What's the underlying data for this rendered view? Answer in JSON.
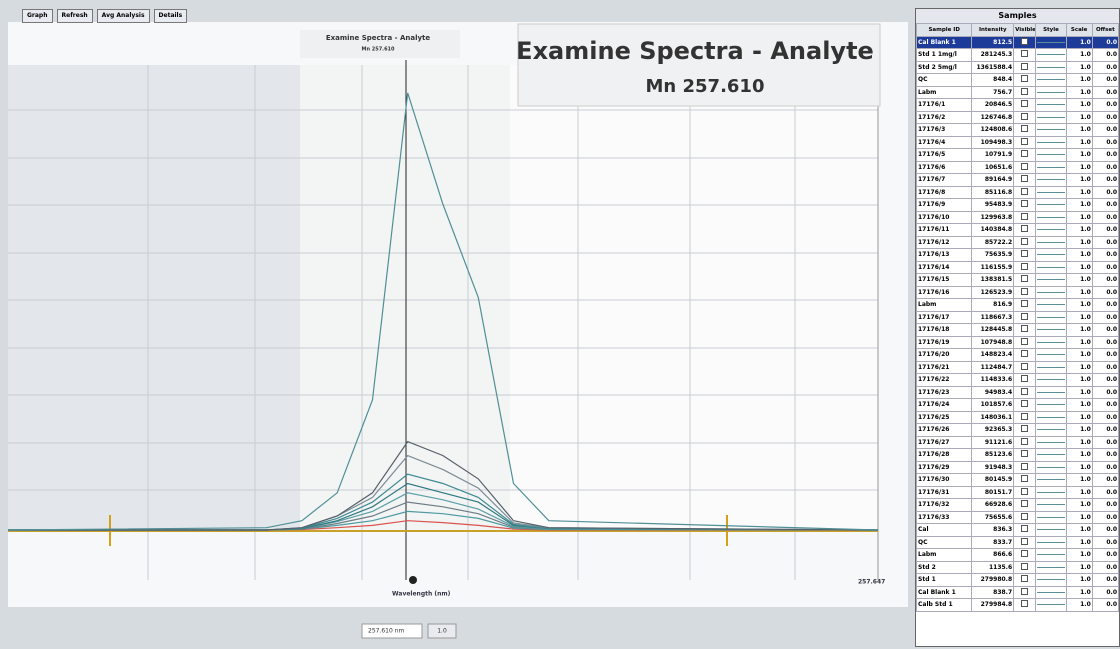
{
  "toolbar": [
    "Graph",
    "Refresh",
    "Avg Analysis",
    "Details"
  ],
  "chart_data": {
    "type": "line",
    "title": "Examine Spectra - Analyte",
    "subtitle": "Mn 257.610",
    "x_label": "Wavelength (nm)",
    "x_end_label": "257.647",
    "xlim": [
      257.576,
      257.65
    ],
    "ylim": [
      0,
      100
    ],
    "x": [
      257.576,
      257.598,
      257.601,
      257.604,
      257.607,
      257.61,
      257.613,
      257.616,
      257.619,
      257.622,
      257.65
    ],
    "series": [
      {
        "color": "#4f8f96",
        "values": [
          0,
          0.5,
          2,
          8,
          28,
          94,
          70,
          50,
          10,
          2,
          0
        ]
      },
      {
        "color": "#55606a",
        "values": [
          0,
          0,
          0.5,
          3,
          8,
          19,
          16,
          11,
          2,
          0.5,
          0
        ]
      },
      {
        "color": "#7a8c95",
        "values": [
          0,
          0,
          0.5,
          3,
          7,
          16,
          13,
          9,
          1.5,
          0.5,
          0
        ]
      },
      {
        "color": "#3f8a92",
        "values": [
          0,
          0,
          0.4,
          2.5,
          6,
          12,
          10,
          7,
          1.2,
          0.3,
          0
        ]
      },
      {
        "color": "#2f7880",
        "values": [
          0,
          0,
          0.3,
          2,
          5,
          10,
          8,
          6,
          1,
          0.3,
          0
        ]
      },
      {
        "color": "#5aa0a6",
        "values": [
          0,
          0,
          0.3,
          1.8,
          4,
          8,
          6.5,
          4.5,
          0.8,
          0.2,
          0
        ]
      },
      {
        "color": "#6d7d86",
        "values": [
          0,
          0,
          0.2,
          1.4,
          3,
          6,
          5,
          3.5,
          0.6,
          0.2,
          0
        ]
      },
      {
        "color": "#4d9aa0",
        "values": [
          0,
          0,
          0.2,
          1,
          2,
          4,
          3.5,
          2.5,
          0.4,
          0.1,
          0
        ]
      },
      {
        "color": "#d9534f",
        "values": [
          0,
          0,
          0.1,
          0.5,
          1,
          2,
          1.6,
          1,
          0.2,
          0,
          0
        ]
      }
    ]
  },
  "wavelength_input": "257.610 nm",
  "step_button": "1.0",
  "samples": {
    "title": "Samples",
    "columns": [
      "Sample ID",
      "Intensity",
      "Visible",
      "Style",
      "Scale",
      "Offset"
    ],
    "rows": [
      [
        "Cal Blank 1",
        "812.5",
        "1.0",
        "0.0"
      ],
      [
        "Std 1 1mg/l",
        "281245.3",
        "1.0",
        "0.0"
      ],
      [
        "Std 2 5mg/l",
        "1361588.4",
        "1.0",
        "0.0"
      ],
      [
        "QC",
        "848.4",
        "1.0",
        "0.0"
      ],
      [
        "Labm",
        "756.7",
        "1.0",
        "0.0"
      ],
      [
        "17176/1",
        "20846.5",
        "1.0",
        "0.0"
      ],
      [
        "17176/2",
        "126746.8",
        "1.0",
        "0.0"
      ],
      [
        "17176/3",
        "124808.6",
        "1.0",
        "0.0"
      ],
      [
        "17176/4",
        "109498.3",
        "1.0",
        "0.0"
      ],
      [
        "17176/5",
        "10791.9",
        "1.0",
        "0.0"
      ],
      [
        "17176/6",
        "10651.6",
        "1.0",
        "0.0"
      ],
      [
        "17176/7",
        "89164.9",
        "1.0",
        "0.0"
      ],
      [
        "17176/8",
        "85116.8",
        "1.0",
        "0.0"
      ],
      [
        "17176/9",
        "95483.9",
        "1.0",
        "0.0"
      ],
      [
        "17176/10",
        "129963.8",
        "1.0",
        "0.0"
      ],
      [
        "17176/11",
        "140384.8",
        "1.0",
        "0.0"
      ],
      [
        "17176/12",
        "85722.2",
        "1.0",
        "0.0"
      ],
      [
        "17176/13",
        "75635.9",
        "1.0",
        "0.0"
      ],
      [
        "17176/14",
        "116155.9",
        "1.0",
        "0.0"
      ],
      [
        "17176/15",
        "138381.5",
        "1.0",
        "0.0"
      ],
      [
        "17176/16",
        "126523.9",
        "1.0",
        "0.0"
      ],
      [
        "Labm",
        "816.9",
        "1.0",
        "0.0"
      ],
      [
        "17176/17",
        "118667.3",
        "1.0",
        "0.0"
      ],
      [
        "17176/18",
        "128445.8",
        "1.0",
        "0.0"
      ],
      [
        "17176/19",
        "107948.8",
        "1.0",
        "0.0"
      ],
      [
        "17176/20",
        "148823.4",
        "1.0",
        "0.0"
      ],
      [
        "17176/21",
        "112484.7",
        "1.0",
        "0.0"
      ],
      [
        "17176/22",
        "114833.6",
        "1.0",
        "0.0"
      ],
      [
        "17176/23",
        "94983.4",
        "1.0",
        "0.0"
      ],
      [
        "17176/24",
        "101857.6",
        "1.0",
        "0.0"
      ],
      [
        "17176/25",
        "148036.1",
        "1.0",
        "0.0"
      ],
      [
        "17176/26",
        "92365.3",
        "1.0",
        "0.0"
      ],
      [
        "17176/27",
        "91121.6",
        "1.0",
        "0.0"
      ],
      [
        "17176/28",
        "85123.6",
        "1.0",
        "0.0"
      ],
      [
        "17176/29",
        "91948.3",
        "1.0",
        "0.0"
      ],
      [
        "17176/30",
        "80145.9",
        "1.0",
        "0.0"
      ],
      [
        "17176/31",
        "80151.7",
        "1.0",
        "0.0"
      ],
      [
        "17176/32",
        "66928.6",
        "1.0",
        "0.0"
      ],
      [
        "17176/33",
        "75655.6",
        "1.0",
        "0.0"
      ],
      [
        "Cal",
        "836.3",
        "1.0",
        "0.0"
      ],
      [
        "QC",
        "833.7",
        "1.0",
        "0.0"
      ],
      [
        "Labm",
        "866.6",
        "1.0",
        "0.0"
      ],
      [
        "Std 2",
        "1135.6",
        "1.0",
        "0.0"
      ],
      [
        "Std 1",
        "279980.8",
        "1.0",
        "0.0"
      ],
      [
        "Cal Blank 1",
        "838.7",
        "1.0",
        "0.0"
      ],
      [
        "Calb Std 1",
        "279984.8",
        "1.0",
        "0.0"
      ]
    ]
  }
}
